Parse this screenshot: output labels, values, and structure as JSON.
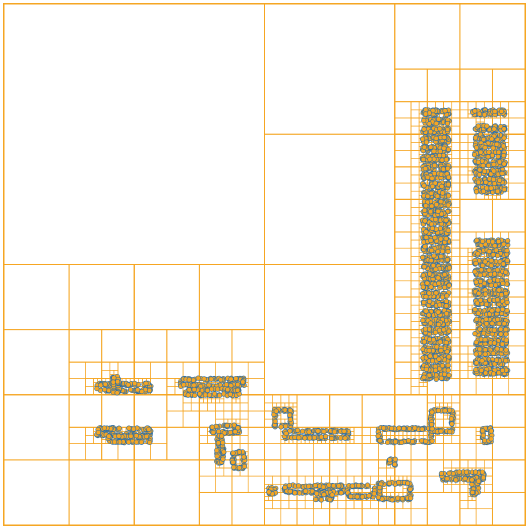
{
  "figure": {
    "kind": "quadtree decomposition",
    "colors": {
      "background": "#ffffff",
      "cell_border": "#f5a623",
      "point_fill": "#f5a623",
      "point_edge": "#2b6ea8"
    }
  }
}
